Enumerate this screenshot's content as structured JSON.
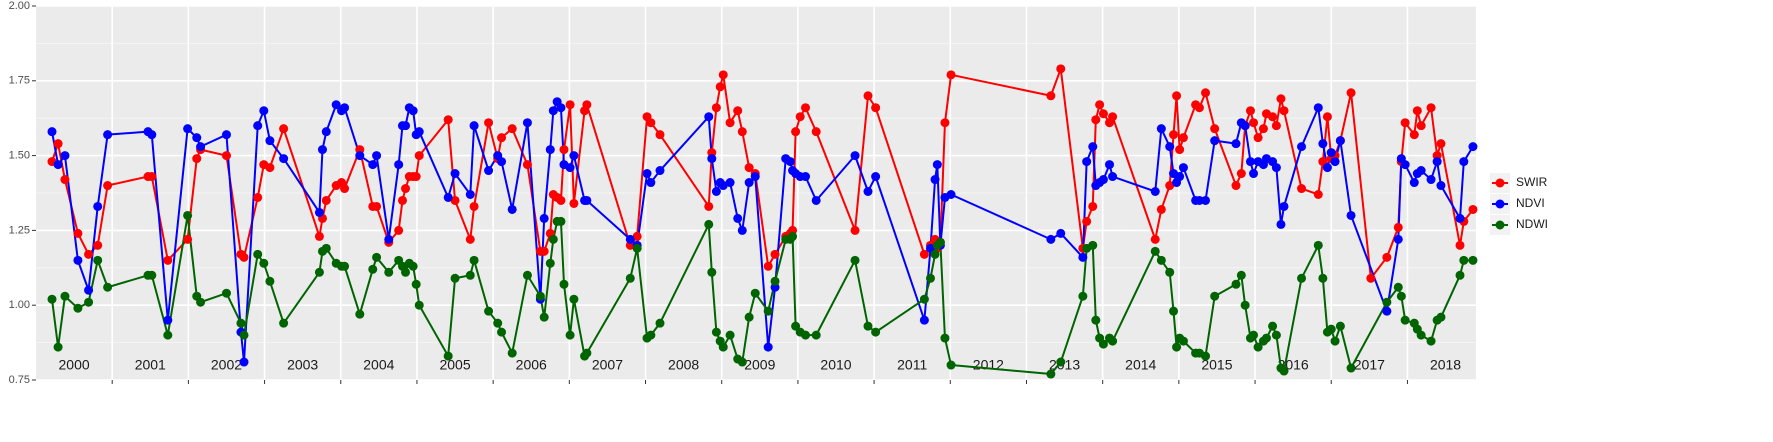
{
  "chart_data": {
    "type": "line",
    "ylim": [
      0.75,
      2.0
    ],
    "yticks": [
      {
        "value": 0.75,
        "label": "0.75"
      },
      {
        "value": 1.0,
        "label": "1.00"
      },
      {
        "value": 1.25,
        "label": "1.25"
      },
      {
        "value": 1.5,
        "label": "1.50"
      },
      {
        "value": 1.75,
        "label": "1.75"
      },
      {
        "value": 2.0,
        "label": "2.00"
      }
    ],
    "xlim": [
      2000,
      2018.9
    ],
    "xticks": [
      2001,
      2002,
      2003,
      2004,
      2005,
      2006,
      2007,
      2008,
      2009,
      2010,
      2011,
      2012,
      2013,
      2014,
      2015,
      2016,
      2017,
      2018
    ],
    "year_labels": [
      "2000",
      "2001",
      "2002",
      "2003",
      "2004",
      "2005",
      "2006",
      "2007",
      "2008",
      "2009",
      "2010",
      "2011",
      "2012",
      "2013",
      "2014",
      "2015",
      "2016",
      "2017",
      "2018"
    ],
    "grid": true,
    "legend": "right",
    "series": [
      {
        "name": "SWIR",
        "color": "#ff0000",
        "x": [
          2000.21,
          2000.29,
          2000.38,
          2000.55,
          2000.69,
          2000.81,
          2000.94,
          2001.47,
          2001.52,
          2001.73,
          2001.99,
          2002.11,
          2002.16,
          2002.5,
          2002.69,
          2002.73,
          2002.91,
          2002.99,
          2003.07,
          2003.25,
          2003.72,
          2003.76,
          2003.81,
          2003.94,
          2004.01,
          2004.05,
          2004.25,
          2004.42,
          2004.47,
          2004.63,
          2004.76,
          2004.81,
          2004.85,
          2004.9,
          2004.95,
          2004.99,
          2005.03,
          2005.41,
          2005.5,
          2005.7,
          2005.75,
          2005.94,
          2006.06,
          2006.11,
          2006.25,
          2006.45,
          2006.62,
          2006.67,
          2006.75,
          2006.79,
          2006.84,
          2006.89,
          2006.93,
          2007.01,
          2007.06,
          2007.2,
          2007.23,
          2007.8,
          2007.89,
          2008.02,
          2008.07,
          2008.19,
          2008.83,
          2008.87,
          2008.93,
          2008.98,
          2009.02,
          2009.11,
          2009.21,
          2009.27,
          2009.36,
          2009.44,
          2009.61,
          2009.7,
          2009.84,
          2009.9,
          2009.93,
          2009.97,
          2010.03,
          2010.1,
          2010.24,
          2010.75,
          2010.92,
          2011.02,
          2011.66,
          2011.74,
          2011.8,
          2011.83,
          2011.87,
          2011.93,
          2012.01,
          2013.32,
          2013.45,
          2013.74,
          2013.79,
          2013.87,
          2013.91,
          2013.96,
          2014.01,
          2014.09,
          2014.13,
          2014.69,
          2014.77,
          2014.88,
          2014.93,
          2014.97,
          2015.01,
          2015.06,
          2015.22,
          2015.27,
          2015.35,
          2015.47,
          2015.75,
          2015.82,
          2015.87,
          2015.94,
          2015.98,
          2016.04,
          2016.11,
          2016.15,
          2016.23,
          2016.28,
          2016.34,
          2016.38,
          2016.61,
          2016.83,
          2016.89,
          2016.95,
          2017,
          2017.05,
          2017.12,
          2017.26,
          2017.52,
          2017.73,
          2017.88,
          2017.92,
          2017.97,
          2018.09,
          2018.13,
          2018.18,
          2018.31,
          2018.39,
          2018.44,
          2018.69,
          2018.74,
          2018.86
        ],
        "values": [
          1.48,
          1.54,
          1.42,
          1.24,
          1.17,
          1.2,
          1.4,
          1.43,
          1.43,
          1.15,
          1.22,
          1.49,
          1.52,
          1.5,
          1.17,
          1.16,
          1.36,
          1.47,
          1.46,
          1.59,
          1.23,
          1.29,
          1.35,
          1.4,
          1.41,
          1.39,
          1.52,
          1.33,
          1.33,
          1.21,
          1.25,
          1.35,
          1.39,
          1.43,
          1.43,
          1.43,
          1.5,
          1.62,
          1.35,
          1.22,
          1.33,
          1.61,
          1.49,
          1.56,
          1.59,
          1.47,
          1.18,
          1.18,
          1.24,
          1.37,
          1.36,
          1.35,
          1.52,
          1.67,
          1.34,
          1.65,
          1.67,
          1.2,
          1.23,
          1.63,
          1.61,
          1.57,
          1.33,
          1.51,
          1.66,
          1.73,
          1.77,
          1.61,
          1.65,
          1.58,
          1.46,
          1.44,
          1.13,
          1.17,
          1.23,
          1.24,
          1.25,
          1.58,
          1.63,
          1.66,
          1.58,
          1.25,
          1.7,
          1.66,
          1.17,
          1.2,
          1.22,
          1.19,
          1.21,
          1.61,
          1.77,
          1.7,
          1.79,
          1.19,
          1.28,
          1.33,
          1.62,
          1.67,
          1.64,
          1.61,
          1.63,
          1.22,
          1.32,
          1.4,
          1.57,
          1.7,
          1.52,
          1.56,
          1.67,
          1.66,
          1.71,
          1.59,
          1.4,
          1.44,
          1.6,
          1.65,
          1.61,
          1.56,
          1.59,
          1.64,
          1.63,
          1.6,
          1.69,
          1.65,
          1.39,
          1.37,
          1.48,
          1.63,
          1.49,
          1.5,
          1.55,
          1.71,
          1.09,
          1.16,
          1.26,
          1.48,
          1.61,
          1.57,
          1.65,
          1.6,
          1.66,
          1.5,
          1.54,
          1.2,
          1.28,
          1.32
        ]
      },
      {
        "name": "NDVI",
        "color": "#0000ff",
        "x": [
          2000.21,
          2000.29,
          2000.38,
          2000.55,
          2000.69,
          2000.81,
          2000.94,
          2001.47,
          2001.52,
          2001.73,
          2001.99,
          2002.11,
          2002.16,
          2002.5,
          2002.69,
          2002.73,
          2002.91,
          2002.99,
          2003.07,
          2003.25,
          2003.72,
          2003.76,
          2003.81,
          2003.94,
          2004.01,
          2004.05,
          2004.25,
          2004.42,
          2004.47,
          2004.63,
          2004.76,
          2004.81,
          2004.85,
          2004.9,
          2004.95,
          2004.99,
          2005.03,
          2005.41,
          2005.5,
          2005.7,
          2005.75,
          2005.94,
          2006.06,
          2006.11,
          2006.25,
          2006.45,
          2006.62,
          2006.67,
          2006.75,
          2006.79,
          2006.84,
          2006.89,
          2006.93,
          2007.01,
          2007.06,
          2007.2,
          2007.23,
          2007.8,
          2007.89,
          2008.02,
          2008.07,
          2008.19,
          2008.83,
          2008.87,
          2008.93,
          2008.98,
          2009.02,
          2009.11,
          2009.21,
          2009.27,
          2009.36,
          2009.44,
          2009.61,
          2009.7,
          2009.84,
          2009.9,
          2009.93,
          2009.97,
          2010.03,
          2010.1,
          2010.24,
          2010.75,
          2010.92,
          2011.02,
          2011.66,
          2011.74,
          2011.8,
          2011.83,
          2011.87,
          2011.93,
          2012.01,
          2013.32,
          2013.45,
          2013.74,
          2013.79,
          2013.87,
          2013.91,
          2013.96,
          2014.01,
          2014.09,
          2014.13,
          2014.69,
          2014.77,
          2014.88,
          2014.93,
          2014.97,
          2015.01,
          2015.06,
          2015.22,
          2015.27,
          2015.35,
          2015.47,
          2015.75,
          2015.82,
          2015.87,
          2015.94,
          2015.98,
          2016.04,
          2016.11,
          2016.15,
          2016.23,
          2016.28,
          2016.34,
          2016.38,
          2016.61,
          2016.83,
          2016.89,
          2016.95,
          2017,
          2017.05,
          2017.12,
          2017.26,
          2017.73,
          2017.88,
          2017.92,
          2017.97,
          2018.09,
          2018.13,
          2018.18,
          2018.31,
          2018.39,
          2018.44,
          2018.69,
          2018.74,
          2018.86
        ],
        "values": [
          1.58,
          1.47,
          1.5,
          1.15,
          1.05,
          1.33,
          1.57,
          1.58,
          1.57,
          0.95,
          1.59,
          1.56,
          1.53,
          1.57,
          0.91,
          0.81,
          1.6,
          1.65,
          1.55,
          1.49,
          1.31,
          1.52,
          1.58,
          1.67,
          1.65,
          1.66,
          1.5,
          1.47,
          1.5,
          1.22,
          1.47,
          1.6,
          1.6,
          1.66,
          1.65,
          1.57,
          1.58,
          1.36,
          1.44,
          1.37,
          1.6,
          1.45,
          1.5,
          1.48,
          1.32,
          1.61,
          1.02,
          1.29,
          1.52,
          1.65,
          1.68,
          1.66,
          1.47,
          1.46,
          1.5,
          1.35,
          1.35,
          1.22,
          1.2,
          1.44,
          1.41,
          1.45,
          1.63,
          1.49,
          1.38,
          1.41,
          1.4,
          1.41,
          1.29,
          1.25,
          1.41,
          1.43,
          0.86,
          1.06,
          1.49,
          1.48,
          1.45,
          1.44,
          1.43,
          1.43,
          1.35,
          1.5,
          1.38,
          1.43,
          0.95,
          1.19,
          1.42,
          1.47,
          1.2,
          1.36,
          1.37,
          1.22,
          1.24,
          1.16,
          1.48,
          1.53,
          1.4,
          1.41,
          1.42,
          1.47,
          1.43,
          1.38,
          1.59,
          1.53,
          1.44,
          1.41,
          1.43,
          1.46,
          1.35,
          1.35,
          1.35,
          1.55,
          1.54,
          1.61,
          1.6,
          1.48,
          1.44,
          1.48,
          1.47,
          1.49,
          1.48,
          1.46,
          1.27,
          1.33,
          1.53,
          1.66,
          1.54,
          1.46,
          1.51,
          1.48,
          1.55,
          1.3,
          0.98,
          1.22,
          1.49,
          1.47,
          1.41,
          1.44,
          1.45,
          1.42,
          1.48,
          1.4,
          1.29,
          1.48,
          1.53
        ]
      },
      {
        "name": "NDWI",
        "color": "#006400",
        "x": [
          2000.21,
          2000.29,
          2000.38,
          2000.55,
          2000.69,
          2000.81,
          2000.94,
          2001.47,
          2001.52,
          2001.73,
          2001.99,
          2002.11,
          2002.16,
          2002.5,
          2002.69,
          2002.73,
          2002.91,
          2002.99,
          2003.07,
          2003.25,
          2003.72,
          2003.76,
          2003.81,
          2003.94,
          2004.01,
          2004.05,
          2004.25,
          2004.42,
          2004.47,
          2004.63,
          2004.76,
          2004.81,
          2004.85,
          2004.9,
          2004.95,
          2004.99,
          2005.03,
          2005.41,
          2005.5,
          2005.7,
          2005.75,
          2005.94,
          2006.06,
          2006.11,
          2006.25,
          2006.45,
          2006.62,
          2006.67,
          2006.75,
          2006.79,
          2006.84,
          2006.89,
          2006.93,
          2007.01,
          2007.06,
          2007.2,
          2007.23,
          2007.8,
          2007.89,
          2008.02,
          2008.07,
          2008.19,
          2008.83,
          2008.87,
          2008.93,
          2008.98,
          2009.02,
          2009.11,
          2009.21,
          2009.27,
          2009.36,
          2009.44,
          2009.61,
          2009.7,
          2009.84,
          2009.9,
          2009.93,
          2009.97,
          2010.03,
          2010.1,
          2010.24,
          2010.75,
          2010.92,
          2011.02,
          2011.66,
          2011.74,
          2011.8,
          2011.83,
          2011.87,
          2011.93,
          2012.01,
          2013.32,
          2013.45,
          2013.74,
          2013.79,
          2013.87,
          2013.91,
          2013.96,
          2014.01,
          2014.09,
          2014.13,
          2014.69,
          2014.77,
          2014.88,
          2014.93,
          2014.97,
          2015.01,
          2015.06,
          2015.22,
          2015.27,
          2015.35,
          2015.47,
          2015.75,
          2015.82,
          2015.87,
          2015.94,
          2015.98,
          2016.04,
          2016.11,
          2016.15,
          2016.23,
          2016.28,
          2016.34,
          2016.38,
          2016.61,
          2016.83,
          2016.89,
          2016.95,
          2017,
          2017.05,
          2017.12,
          2017.26,
          2017.73,
          2017.88,
          2017.92,
          2017.97,
          2018.09,
          2018.13,
          2018.18,
          2018.31,
          2018.39,
          2018.44,
          2018.69,
          2018.74,
          2018.86
        ],
        "values": [
          1.02,
          0.86,
          1.03,
          0.99,
          1.01,
          1.15,
          1.06,
          1.1,
          1.1,
          0.9,
          1.3,
          1.03,
          1.01,
          1.04,
          0.94,
          0.9,
          1.17,
          1.14,
          1.08,
          0.94,
          1.11,
          1.18,
          1.19,
          1.14,
          1.13,
          1.13,
          0.97,
          1.12,
          1.16,
          1.11,
          1.15,
          1.13,
          1.11,
          1.14,
          1.13,
          1.07,
          1.0,
          0.83,
          1.09,
          1.1,
          1.15,
          0.98,
          0.94,
          0.91,
          0.84,
          1.1,
          1.03,
          0.96,
          1.14,
          1.22,
          1.28,
          1.28,
          1.07,
          0.9,
          1.02,
          0.83,
          0.84,
          1.09,
          1.19,
          0.89,
          0.9,
          0.94,
          1.27,
          1.11,
          0.91,
          0.88,
          0.86,
          0.9,
          0.82,
          0.81,
          0.96,
          1.04,
          0.98,
          1.08,
          1.22,
          1.22,
          1.23,
          0.93,
          0.91,
          0.9,
          0.9,
          1.15,
          0.93,
          0.91,
          1.02,
          1.09,
          1.17,
          1.2,
          1.21,
          0.89,
          0.8,
          0.77,
          0.81,
          1.03,
          1.19,
          1.2,
          0.95,
          0.89,
          0.87,
          0.89,
          0.88,
          1.18,
          1.15,
          1.11,
          0.98,
          0.86,
          0.89,
          0.88,
          0.84,
          0.84,
          0.83,
          1.03,
          1.07,
          1.1,
          1.0,
          0.89,
          0.9,
          0.86,
          0.88,
          0.89,
          0.93,
          0.9,
          0.79,
          0.78,
          1.09,
          1.2,
          1.09,
          0.91,
          0.92,
          0.88,
          0.93,
          0.79,
          1.01,
          1.06,
          1.03,
          0.95,
          0.94,
          0.92,
          0.9,
          0.88,
          0.95,
          0.96,
          1.1,
          1.15,
          1.15
        ]
      }
    ]
  }
}
